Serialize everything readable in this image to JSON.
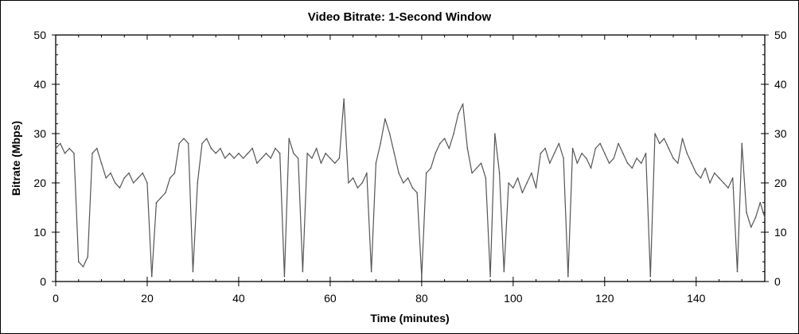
{
  "chart_data": {
    "type": "line",
    "title": "Video Bitrate: 1-Second Window",
    "xlabel": "Time (minutes)",
    "ylabel": "Bitrate (Mbps)",
    "xlim": [
      0,
      155
    ],
    "ylim": [
      0,
      50
    ],
    "xticks": [
      0,
      20,
      40,
      60,
      80,
      100,
      120,
      140
    ],
    "yticks": [
      0,
      10,
      20,
      30,
      40,
      50
    ],
    "grid": false,
    "right_axis_mirrored": true,
    "line_color": "#555555",
    "series": [
      {
        "x": [
          0,
          1,
          2,
          3,
          4,
          5,
          6,
          7,
          8,
          9,
          10,
          11,
          12,
          13,
          14,
          15,
          16,
          17,
          18,
          19,
          20,
          21,
          22,
          23,
          24,
          25,
          26,
          27,
          28,
          29,
          30,
          31,
          32,
          33,
          34,
          35,
          36,
          37,
          38,
          39,
          40,
          41,
          42,
          43,
          44,
          45,
          46,
          47,
          48,
          49,
          50,
          51,
          52,
          53,
          54,
          55,
          56,
          57,
          58,
          59,
          60,
          61,
          62,
          63,
          64,
          65,
          66,
          67,
          68,
          69,
          70,
          71,
          72,
          73,
          74,
          75,
          76,
          77,
          78,
          79,
          80,
          81,
          82,
          83,
          84,
          85,
          86,
          87,
          88,
          89,
          90,
          91,
          92,
          93,
          94,
          95,
          96,
          97,
          98,
          99,
          100,
          101,
          102,
          103,
          104,
          105,
          106,
          107,
          108,
          109,
          110,
          111,
          112,
          113,
          114,
          115,
          116,
          117,
          118,
          119,
          120,
          121,
          122,
          123,
          124,
          125,
          126,
          127,
          128,
          129,
          130,
          131,
          132,
          133,
          134,
          135,
          136,
          137,
          138,
          139,
          140,
          141,
          142,
          143,
          144,
          145,
          146,
          147,
          148,
          149,
          150,
          151,
          152,
          153,
          154,
          155
        ],
        "y": [
          27,
          28,
          26,
          27,
          26,
          4,
          3,
          5,
          26,
          27,
          24,
          21,
          22,
          20,
          19,
          21,
          22,
          20,
          21,
          22,
          20,
          1,
          16,
          17,
          18,
          21,
          22,
          28,
          29,
          28,
          2,
          20,
          28,
          29,
          27,
          26,
          27,
          25,
          26,
          25,
          26,
          25,
          26,
          27,
          24,
          25,
          26,
          25,
          27,
          26,
          1,
          29,
          26,
          25,
          2,
          26,
          25,
          27,
          24,
          26,
          25,
          24,
          25,
          37,
          20,
          21,
          19,
          20,
          22,
          2,
          24,
          28,
          33,
          30,
          26,
          22,
          20,
          21,
          19,
          18,
          1,
          22,
          23,
          26,
          28,
          29,
          27,
          30,
          34,
          36,
          27,
          22,
          23,
          24,
          21,
          1,
          30,
          22,
          2,
          20,
          19,
          21,
          18,
          20,
          22,
          19,
          26,
          27,
          24,
          26,
          28,
          25,
          1,
          27,
          24,
          26,
          25,
          23,
          27,
          28,
          26,
          24,
          25,
          28,
          26,
          24,
          23,
          25,
          24,
          26,
          1,
          30,
          28,
          29,
          27,
          25,
          24,
          29,
          26,
          24,
          22,
          21,
          23,
          20,
          22,
          21,
          20,
          19,
          21,
          2,
          28,
          14,
          11,
          13,
          16,
          13
        ]
      }
    ]
  }
}
